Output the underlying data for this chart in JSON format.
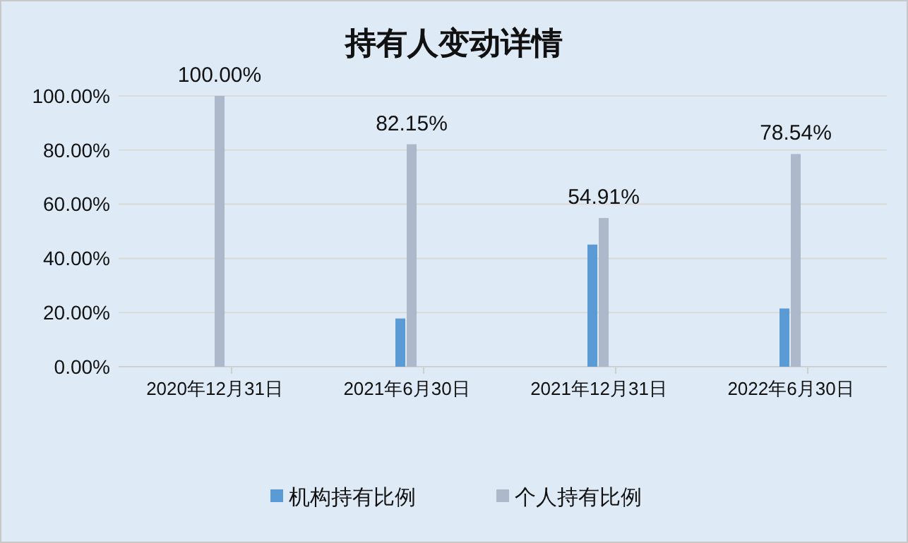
{
  "chart_data": {
    "type": "bar",
    "title": "持有人变动详情",
    "categories": [
      "2020年12月31日",
      "2021年6月30日",
      "2021年12月31日",
      "2022年6月30日"
    ],
    "series": [
      {
        "name": "机构持有比例",
        "color": "#5b9bd5",
        "values": [
          null,
          17.8,
          45.1,
          21.5
        ]
      },
      {
        "name": "个人持有比例",
        "color": "#adb9ca",
        "values": [
          100,
          82.15,
          54.91,
          78.54
        ],
        "value_labels": [
          "100.00%",
          "82.15%",
          "54.91%",
          "78.54%"
        ]
      }
    ],
    "ylim": [
      0,
      100
    ],
    "yticks": [
      {
        "value": 0,
        "label": "0.00%"
      },
      {
        "value": 20,
        "label": "20.00%"
      },
      {
        "value": 40,
        "label": "40.00%"
      },
      {
        "value": 60,
        "label": "60.00%"
      },
      {
        "value": 80,
        "label": "80.00%"
      },
      {
        "value": 100,
        "label": "100.00%"
      }
    ],
    "grid": "y",
    "legend": "bottom"
  }
}
